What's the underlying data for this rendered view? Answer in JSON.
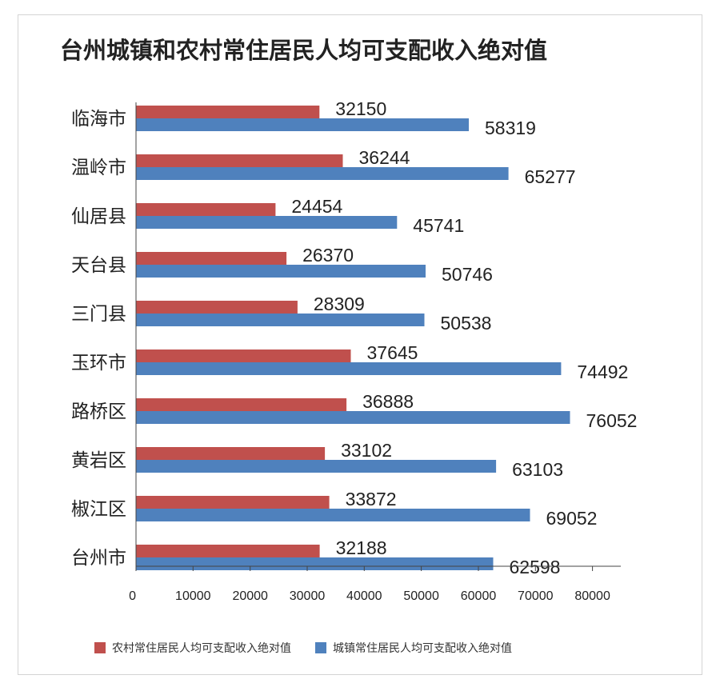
{
  "colors": {
    "rural": "#c0504d",
    "urban": "#4f81bd",
    "axis": "#444444"
  },
  "chart_data": {
    "type": "bar",
    "orientation": "horizontal",
    "title": "台州城镇和农村常住居民人均可支配收入绝对值",
    "xlabel": "",
    "ylabel": "",
    "xlim": [
      0,
      85000
    ],
    "xticks": [
      0,
      10000,
      20000,
      30000,
      40000,
      50000,
      60000,
      70000,
      80000
    ],
    "grid": false,
    "legend_position": "bottom",
    "categories": [
      "临海市",
      "温岭市",
      "仙居县",
      "天台县",
      "三门县",
      "玉环市",
      "路桥区",
      "黄岩区",
      "椒江区",
      "台州市"
    ],
    "series": [
      {
        "name": "农村常住居民人均可支配收入绝对值",
        "values": [
          32150,
          36244,
          24454,
          26370,
          28309,
          37645,
          36888,
          33102,
          33872,
          32188
        ]
      },
      {
        "name": "城镇常住居民人均可支配收入绝对值",
        "values": [
          58319,
          65277,
          45741,
          50746,
          50538,
          74492,
          76052,
          63103,
          69052,
          62598
        ]
      }
    ]
  }
}
